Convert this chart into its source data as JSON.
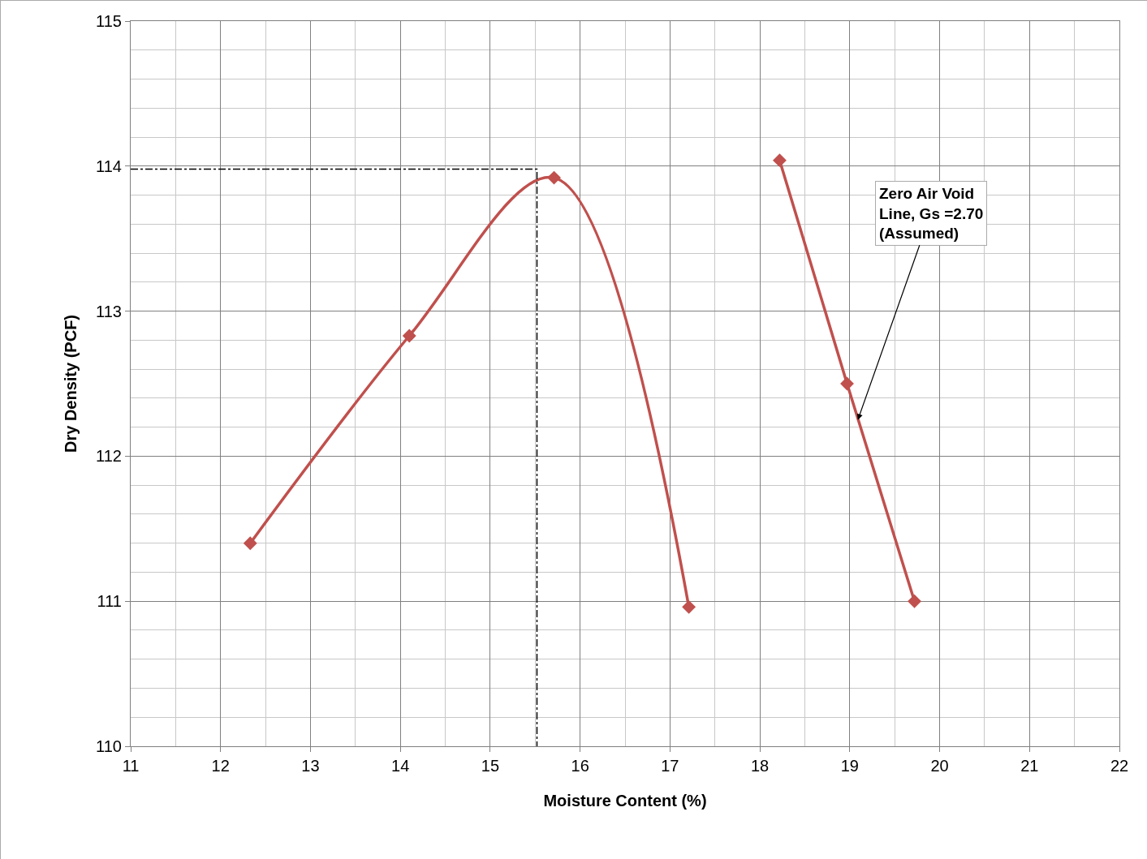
{
  "chart_data": {
    "type": "line",
    "xlabel": "Moisture Content (%)",
    "ylabel": "Dry Density (PCF)",
    "xlim": [
      11,
      22
    ],
    "xticks": [
      11,
      12,
      13,
      14,
      15,
      16,
      17,
      18,
      19,
      20,
      21,
      22
    ],
    "ylim": [
      110,
      115
    ],
    "yticks": [
      110,
      111,
      112,
      113,
      114,
      115
    ],
    "grid": true,
    "marker": "diamond",
    "line_style": "solid",
    "series": [
      {
        "color": "#c0504d",
        "x": [
          12.33,
          14.1,
          15.71,
          17.21
        ],
        "values": [
          111.4,
          112.83,
          113.92,
          110.96
        ]
      },
      {
        "color": "#c0504d",
        "x": [
          18.22,
          18.97,
          19.72
        ],
        "values": [
          114.04,
          112.5,
          111.0
        ]
      },
      {
        "color": "#000000",
        "x": [
          11,
          15.52,
          15.52
        ],
        "values": [
          113.98,
          113.98,
          110
        ],
        "marker": "none",
        "line_style": "dashed"
      }
    ],
    "annotations": [
      {
        "text": "Zero Air Void\nLine, Gs =2.70\n(Assumed)",
        "x": 19.09,
        "y": 112.25
      }
    ]
  }
}
